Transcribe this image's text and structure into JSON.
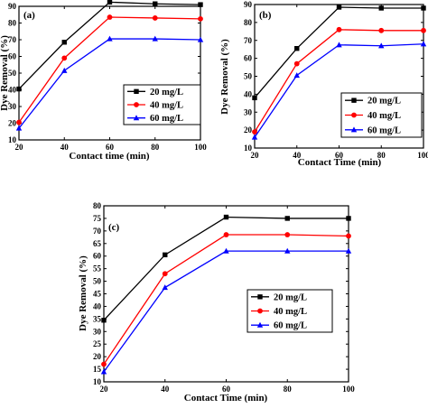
{
  "chart_data": [
    {
      "type": "line",
      "panel_label": "(a)",
      "xlabel": "Contact time (min)",
      "ylabel": "Dye Removal (%)",
      "xlim": [
        20,
        100
      ],
      "ylim": [
        10,
        90
      ],
      "x_ticks": [
        "20",
        "40",
        "60",
        "80",
        "100"
      ],
      "y_ticks": [
        "10",
        "20",
        "30",
        "40",
        "50",
        "60",
        "70",
        "80",
        "90"
      ],
      "x": [
        20,
        40,
        60,
        80,
        100
      ],
      "series": [
        {
          "name": "20 mg/L",
          "color": "#000000",
          "marker": "square",
          "values": [
            40.5,
            68.5,
            92.5,
            91.5,
            91.0
          ]
        },
        {
          "name": "40 mg/L",
          "color": "#ff0000",
          "marker": "circle",
          "values": [
            20.5,
            59.0,
            83.5,
            83.0,
            82.5
          ]
        },
        {
          "name": "60 mg/L",
          "color": "#0000ff",
          "marker": "triangle",
          "values": [
            17.0,
            51.5,
            70.5,
            70.5,
            70.0
          ]
        }
      ],
      "legend": "center-right",
      "grid": false
    },
    {
      "type": "line",
      "panel_label": "(b)",
      "xlabel": "Contact Time (min)",
      "ylabel": "Dye Removal (%)",
      "xlim": [
        20,
        100
      ],
      "ylim": [
        10,
        90
      ],
      "x_ticks": [
        "20",
        "40",
        "60",
        "80",
        "100"
      ],
      "y_ticks": [
        "10",
        "20",
        "30",
        "40",
        "50",
        "60",
        "70",
        "80",
        "90"
      ],
      "x": [
        20,
        40,
        60,
        80,
        100
      ],
      "series": [
        {
          "name": "20 mg/L",
          "color": "#000000",
          "marker": "square",
          "values": [
            38.0,
            65.5,
            88.5,
            88.0,
            88.0
          ]
        },
        {
          "name": "40 mg/L",
          "color": "#ff0000",
          "marker": "circle",
          "values": [
            19.0,
            57.0,
            76.0,
            75.5,
            75.5
          ]
        },
        {
          "name": "60 mg/L",
          "color": "#0000ff",
          "marker": "triangle",
          "values": [
            16.0,
            50.5,
            67.5,
            67.0,
            68.0
          ]
        }
      ],
      "legend": "center-right",
      "grid": false
    },
    {
      "type": "line",
      "panel_label": "(c)",
      "xlabel": "Contact Time (min)",
      "ylabel": "Dye Removal (%)",
      "xlim": [
        20,
        100
      ],
      "ylim": [
        10,
        80
      ],
      "x_ticks": [
        "20",
        "40",
        "60",
        "80",
        "100"
      ],
      "y_ticks": [
        "10",
        "15",
        "20",
        "25",
        "30",
        "35",
        "40",
        "45",
        "50",
        "55",
        "60",
        "65",
        "70",
        "75",
        "80"
      ],
      "x": [
        20,
        40,
        60,
        80,
        100
      ],
      "series": [
        {
          "name": "20 mg/L",
          "color": "#000000",
          "marker": "square",
          "values": [
            34.5,
            60.5,
            75.5,
            75.0,
            75.0
          ]
        },
        {
          "name": "40 mg/L",
          "color": "#ff0000",
          "marker": "circle",
          "values": [
            17.0,
            53.0,
            68.5,
            68.5,
            68.0
          ]
        },
        {
          "name": "60 mg/L",
          "color": "#0000ff",
          "marker": "triangle",
          "values": [
            14.0,
            47.5,
            62.0,
            62.0,
            62.0
          ]
        }
      ],
      "legend": "center-right",
      "grid": false
    }
  ]
}
